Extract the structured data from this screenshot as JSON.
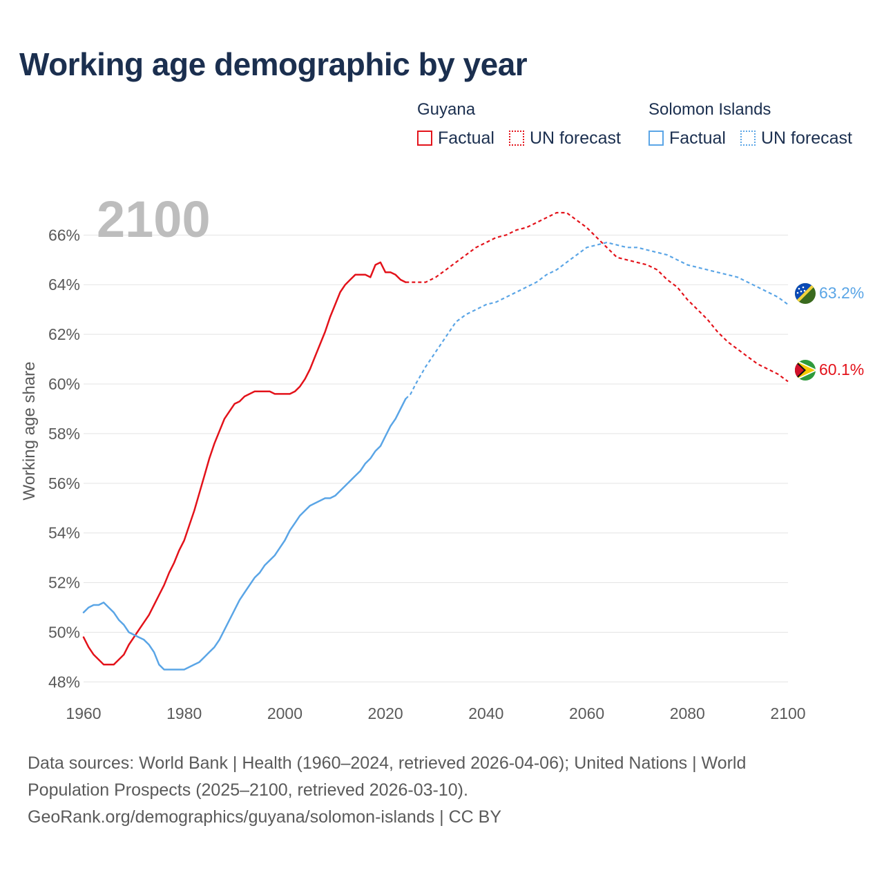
{
  "title": "Working age demographic by year",
  "legend": {
    "groups": [
      {
        "name": "Guyana",
        "color": "#e3121a",
        "items": [
          {
            "label": "Factual",
            "style": "solid"
          },
          {
            "label": "UN forecast",
            "style": "dotted"
          }
        ]
      },
      {
        "name": "Solomon Islands",
        "color": "#5aa5e6",
        "items": [
          {
            "label": "Factual",
            "style": "solid"
          },
          {
            "label": "UN forecast",
            "style": "dotted"
          }
        ]
      }
    ]
  },
  "year_overlay": "2100",
  "footer": {
    "sources": "Data sources: World Bank | Health (1960–2024, retrieved 2026-04-06); United Nations | World Population Prospects (2025–2100, retrieved 2026-03-10).",
    "credit": "GeoRank.org/demographics/guyana/solomon-islands | CC BY"
  },
  "chart_data": {
    "type": "line",
    "title": "Working age demographic by year",
    "xlabel": "",
    "ylabel": "Working age share",
    "xlim": [
      1960,
      2100
    ],
    "ylim": [
      47.4,
      67.4
    ],
    "x_ticks": [
      1960,
      1980,
      2000,
      2020,
      2040,
      2060,
      2080,
      2100
    ],
    "x_tick_labels": [
      "1960",
      "1980",
      "2000",
      "2020",
      "2040",
      "2060",
      "2080",
      "2100"
    ],
    "y_ticks": [
      48,
      50,
      52,
      54,
      56,
      58,
      60,
      62,
      64,
      66
    ],
    "y_tick_labels": [
      "48%",
      "50%",
      "52%",
      "54%",
      "56%",
      "58%",
      "60%",
      "62%",
      "64%",
      "66%"
    ],
    "grid": true,
    "forecast_start_year": 2024,
    "series": [
      {
        "name": "Guyana",
        "color": "#e3121a",
        "end_label": "60.1%",
        "flag_icon": "guyana-flag-icon",
        "points": [
          [
            1960,
            49.8
          ],
          [
            1961,
            49.4
          ],
          [
            1962,
            49.1
          ],
          [
            1963,
            48.9
          ],
          [
            1964,
            48.7
          ],
          [
            1965,
            48.7
          ],
          [
            1966,
            48.7
          ],
          [
            1967,
            48.9
          ],
          [
            1968,
            49.1
          ],
          [
            1969,
            49.5
          ],
          [
            1970,
            49.8
          ],
          [
            1971,
            50.1
          ],
          [
            1972,
            50.4
          ],
          [
            1973,
            50.7
          ],
          [
            1974,
            51.1
          ],
          [
            1975,
            51.5
          ],
          [
            1976,
            51.9
          ],
          [
            1977,
            52.4
          ],
          [
            1978,
            52.8
          ],
          [
            1979,
            53.3
          ],
          [
            1980,
            53.7
          ],
          [
            1981,
            54.3
          ],
          [
            1982,
            54.9
          ],
          [
            1983,
            55.6
          ],
          [
            1984,
            56.3
          ],
          [
            1985,
            57.0
          ],
          [
            1986,
            57.6
          ],
          [
            1987,
            58.1
          ],
          [
            1988,
            58.6
          ],
          [
            1989,
            58.9
          ],
          [
            1990,
            59.2
          ],
          [
            1991,
            59.3
          ],
          [
            1992,
            59.5
          ],
          [
            1993,
            59.6
          ],
          [
            1994,
            59.7
          ],
          [
            1995,
            59.7
          ],
          [
            1996,
            59.7
          ],
          [
            1997,
            59.7
          ],
          [
            1998,
            59.6
          ],
          [
            1999,
            59.6
          ],
          [
            2000,
            59.6
          ],
          [
            2001,
            59.6
          ],
          [
            2002,
            59.7
          ],
          [
            2003,
            59.9
          ],
          [
            2004,
            60.2
          ],
          [
            2005,
            60.6
          ],
          [
            2006,
            61.1
          ],
          [
            2007,
            61.6
          ],
          [
            2008,
            62.1
          ],
          [
            2009,
            62.7
          ],
          [
            2010,
            63.2
          ],
          [
            2011,
            63.7
          ],
          [
            2012,
            64.0
          ],
          [
            2013,
            64.2
          ],
          [
            2014,
            64.4
          ],
          [
            2015,
            64.4
          ],
          [
            2016,
            64.4
          ],
          [
            2017,
            64.3
          ],
          [
            2018,
            64.8
          ],
          [
            2019,
            64.9
          ],
          [
            2020,
            64.5
          ],
          [
            2021,
            64.5
          ],
          [
            2022,
            64.4
          ],
          [
            2023,
            64.2
          ],
          [
            2024,
            64.1
          ],
          [
            2025,
            64.1
          ],
          [
            2026,
            64.1
          ],
          [
            2027,
            64.1
          ],
          [
            2028,
            64.1
          ],
          [
            2029,
            64.2
          ],
          [
            2030,
            64.3
          ],
          [
            2032,
            64.6
          ],
          [
            2034,
            64.9
          ],
          [
            2036,
            65.2
          ],
          [
            2038,
            65.5
          ],
          [
            2040,
            65.7
          ],
          [
            2042,
            65.9
          ],
          [
            2044,
            66.0
          ],
          [
            2046,
            66.2
          ],
          [
            2048,
            66.3
          ],
          [
            2050,
            66.5
          ],
          [
            2052,
            66.7
          ],
          [
            2054,
            66.9
          ],
          [
            2056,
            66.9
          ],
          [
            2058,
            66.6
          ],
          [
            2060,
            66.3
          ],
          [
            2062,
            65.9
          ],
          [
            2064,
            65.5
          ],
          [
            2066,
            65.1
          ],
          [
            2068,
            65.0
          ],
          [
            2070,
            64.9
          ],
          [
            2072,
            64.8
          ],
          [
            2074,
            64.6
          ],
          [
            2076,
            64.2
          ],
          [
            2078,
            63.9
          ],
          [
            2080,
            63.4
          ],
          [
            2082,
            63.0
          ],
          [
            2084,
            62.6
          ],
          [
            2086,
            62.1
          ],
          [
            2088,
            61.7
          ],
          [
            2090,
            61.4
          ],
          [
            2092,
            61.1
          ],
          [
            2094,
            60.8
          ],
          [
            2096,
            60.6
          ],
          [
            2098,
            60.4
          ],
          [
            2100,
            60.1
          ]
        ]
      },
      {
        "name": "Solomon Islands",
        "color": "#5aa5e6",
        "end_label": "63.2%",
        "flag_icon": "solomon-islands-flag-icon",
        "points": [
          [
            1960,
            50.8
          ],
          [
            1961,
            51.0
          ],
          [
            1962,
            51.1
          ],
          [
            1963,
            51.1
          ],
          [
            1964,
            51.2
          ],
          [
            1965,
            51.0
          ],
          [
            1966,
            50.8
          ],
          [
            1967,
            50.5
          ],
          [
            1968,
            50.3
          ],
          [
            1969,
            50.0
          ],
          [
            1970,
            49.9
          ],
          [
            1971,
            49.8
          ],
          [
            1972,
            49.7
          ],
          [
            1973,
            49.5
          ],
          [
            1974,
            49.2
          ],
          [
            1975,
            48.7
          ],
          [
            1976,
            48.5
          ],
          [
            1977,
            48.5
          ],
          [
            1978,
            48.5
          ],
          [
            1979,
            48.5
          ],
          [
            1980,
            48.5
          ],
          [
            1981,
            48.6
          ],
          [
            1982,
            48.7
          ],
          [
            1983,
            48.8
          ],
          [
            1984,
            49.0
          ],
          [
            1985,
            49.2
          ],
          [
            1986,
            49.4
          ],
          [
            1987,
            49.7
          ],
          [
            1988,
            50.1
          ],
          [
            1989,
            50.5
          ],
          [
            1990,
            50.9
          ],
          [
            1991,
            51.3
          ],
          [
            1992,
            51.6
          ],
          [
            1993,
            51.9
          ],
          [
            1994,
            52.2
          ],
          [
            1995,
            52.4
          ],
          [
            1996,
            52.7
          ],
          [
            1997,
            52.9
          ],
          [
            1998,
            53.1
          ],
          [
            1999,
            53.4
          ],
          [
            2000,
            53.7
          ],
          [
            2001,
            54.1
          ],
          [
            2002,
            54.4
          ],
          [
            2003,
            54.7
          ],
          [
            2004,
            54.9
          ],
          [
            2005,
            55.1
          ],
          [
            2006,
            55.2
          ],
          [
            2007,
            55.3
          ],
          [
            2008,
            55.4
          ],
          [
            2009,
            55.4
          ],
          [
            2010,
            55.5
          ],
          [
            2011,
            55.7
          ],
          [
            2012,
            55.9
          ],
          [
            2013,
            56.1
          ],
          [
            2014,
            56.3
          ],
          [
            2015,
            56.5
          ],
          [
            2016,
            56.8
          ],
          [
            2017,
            57.0
          ],
          [
            2018,
            57.3
          ],
          [
            2019,
            57.5
          ],
          [
            2020,
            57.9
          ],
          [
            2021,
            58.3
          ],
          [
            2022,
            58.6
          ],
          [
            2023,
            59.0
          ],
          [
            2024,
            59.4
          ],
          [
            2025,
            59.6
          ],
          [
            2026,
            60.0
          ],
          [
            2028,
            60.7
          ],
          [
            2030,
            61.3
          ],
          [
            2032,
            61.9
          ],
          [
            2034,
            62.5
          ],
          [
            2036,
            62.8
          ],
          [
            2038,
            63.0
          ],
          [
            2040,
            63.2
          ],
          [
            2042,
            63.3
          ],
          [
            2044,
            63.5
          ],
          [
            2046,
            63.7
          ],
          [
            2048,
            63.9
          ],
          [
            2050,
            64.1
          ],
          [
            2052,
            64.4
          ],
          [
            2054,
            64.6
          ],
          [
            2056,
            64.9
          ],
          [
            2058,
            65.2
          ],
          [
            2060,
            65.5
          ],
          [
            2062,
            65.6
          ],
          [
            2064,
            65.7
          ],
          [
            2066,
            65.6
          ],
          [
            2068,
            65.5
          ],
          [
            2070,
            65.5
          ],
          [
            2072,
            65.4
          ],
          [
            2074,
            65.3
          ],
          [
            2076,
            65.2
          ],
          [
            2078,
            65.0
          ],
          [
            2080,
            64.8
          ],
          [
            2082,
            64.7
          ],
          [
            2084,
            64.6
          ],
          [
            2086,
            64.5
          ],
          [
            2088,
            64.4
          ],
          [
            2090,
            64.3
          ],
          [
            2092,
            64.1
          ],
          [
            2094,
            63.9
          ],
          [
            2096,
            63.7
          ],
          [
            2098,
            63.5
          ],
          [
            2100,
            63.2
          ]
        ]
      }
    ]
  }
}
